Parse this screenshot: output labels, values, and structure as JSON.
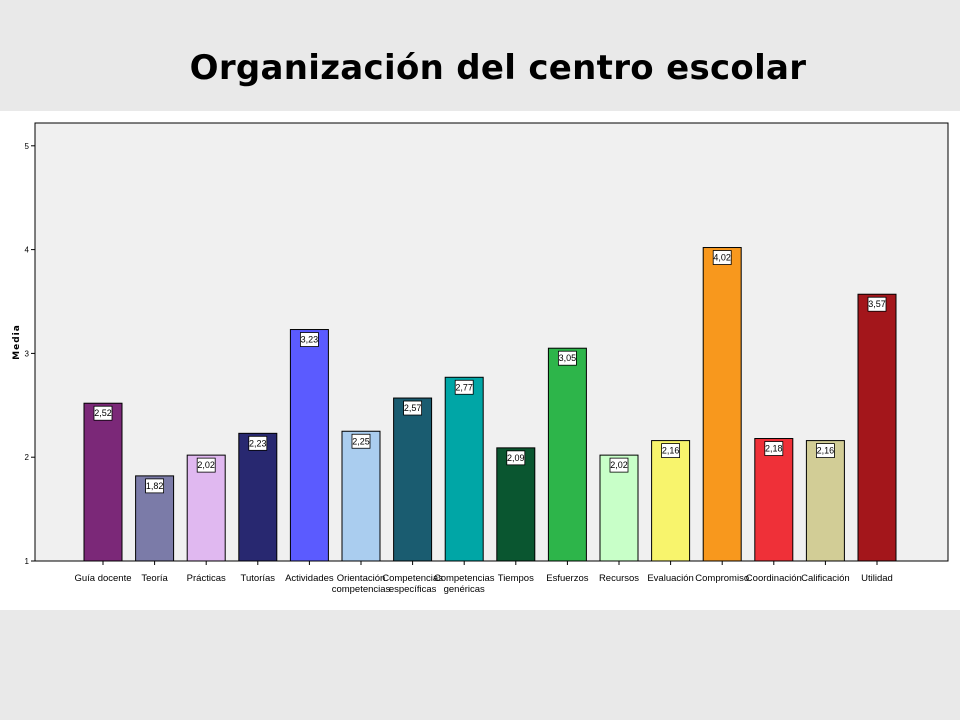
{
  "chart_data": {
    "type": "bar",
    "title": "Organización del centro escolar",
    "xlabel": "",
    "ylabel": "Media",
    "ylim": [
      1,
      5.2
    ],
    "yticks": [
      1,
      2,
      3,
      4,
      5
    ],
    "grid": false,
    "categories": [
      [
        "Guía docente"
      ],
      [
        "Teoría"
      ],
      [
        "Prácticas"
      ],
      [
        "Tutorías"
      ],
      [
        "Actividades"
      ],
      [
        "Orientación",
        "competencias"
      ],
      [
        "Competencias",
        "específicas"
      ],
      [
        "Competencias",
        "genéricas"
      ],
      [
        "Tiempos"
      ],
      [
        "Esfuerzos"
      ],
      [
        "Recursos"
      ],
      [
        "Evaluación"
      ],
      [
        "Compromiso"
      ],
      [
        "Coordinación"
      ],
      [
        "Calificación"
      ],
      [
        "Utilidad"
      ]
    ],
    "values": [
      2.52,
      1.82,
      2.02,
      2.23,
      3.23,
      2.25,
      2.57,
      2.77,
      2.09,
      3.05,
      2.02,
      2.16,
      4.02,
      2.18,
      2.16,
      3.57
    ],
    "value_labels": [
      "2,52",
      "1,82",
      "2,02",
      "2,23",
      "3,23",
      "2,25",
      "2,57",
      "2,77",
      "2,09",
      "3,05",
      "2,02",
      "2,16",
      "4,02",
      "2,18",
      "2,16",
      "3,57"
    ],
    "colors": [
      "#7b2878",
      "#7b7ba8",
      "#e0b8f0",
      "#282870",
      "#5b5bff",
      "#aacdef",
      "#1a5c70",
      "#00a6a6",
      "#0a5630",
      "#2db54a",
      "#c8ffc8",
      "#f8f46c",
      "#f8981d",
      "#ef3038",
      "#d2cd96",
      "#a3161b"
    ]
  }
}
